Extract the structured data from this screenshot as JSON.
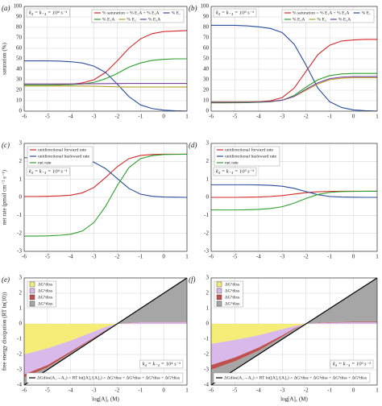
{
  "chart_data": [
    {
      "type": "line",
      "label": "(a)",
      "annotation": "k₄ = k₋₄ = 10⁴ s⁻¹",
      "ylabel": "saturation (%)",
      "legend": "upper right",
      "grid": true,
      "x": [
        -6,
        -5.5,
        -5,
        -4.5,
        -4,
        -3.5,
        -3,
        -2.5,
        -2,
        -1.5,
        -1,
        -0.5,
        0,
        0.5,
        1
      ],
      "xlim": [
        -6,
        1
      ],
      "xticks": [
        -6,
        -5,
        -4,
        -3,
        -2,
        -1,
        0,
        1
      ],
      "ylim": [
        0,
        100
      ],
      "yticks": [
        0,
        10,
        20,
        30,
        40,
        50,
        60,
        70,
        80,
        90,
        100
      ],
      "series": [
        {
          "name": "% saturation = % E₁A + % E₂A",
          "color": "#d62728",
          "values": [
            25,
            25,
            25,
            25.2,
            25.6,
            27,
            30,
            37,
            48,
            60,
            69,
            74,
            76,
            76.5,
            77
          ]
        },
        {
          "name": "% E₁",
          "color": "#2a4d9b",
          "values": [
            48,
            48,
            48,
            47.8,
            47.2,
            46,
            43,
            37,
            26,
            14,
            6,
            2.5,
            1,
            0.3,
            0.1
          ]
        },
        {
          "name": "% E₁A",
          "color": "#2ca02c",
          "values": [
            25,
            25,
            25,
            25.1,
            25.3,
            26,
            27.5,
            31,
            36,
            42,
            46,
            48.5,
            49.5,
            50,
            50
          ]
        },
        {
          "name": "% E₂",
          "color": "#b8a02a",
          "values": [
            24,
            24,
            24,
            24,
            24,
            24,
            23.8,
            23.5,
            23.2,
            23,
            23,
            23,
            23,
            23,
            23
          ]
        },
        {
          "name": "% E₂A",
          "color": "#7b3f9e",
          "values": [
            26,
            26,
            26,
            26,
            26,
            26.1,
            26.2,
            26.3,
            26.4,
            26.5,
            26.5,
            26.5,
            26.5,
            26.5,
            26.5
          ]
        }
      ]
    },
    {
      "type": "line",
      "label": "(b)",
      "annotation": "k₄ = k₋₄ = 10³ s⁻¹",
      "legend": "upper right",
      "grid": true,
      "x": [
        -6,
        -5.5,
        -5,
        -4.5,
        -4,
        -3.5,
        -3,
        -2.5,
        -2,
        -1.5,
        -1,
        -0.5,
        0,
        0.5,
        1
      ],
      "xlim": [
        -6,
        1
      ],
      "xticks": [
        -6,
        -5,
        -4,
        -3,
        -2,
        -1,
        0,
        1
      ],
      "ylim": [
        0,
        100
      ],
      "yticks": [
        0,
        10,
        20,
        30,
        40,
        50,
        60,
        70,
        80,
        90,
        100
      ],
      "series": [
        {
          "name": "% saturation = % E₁A + % E₂A",
          "color": "#d62728",
          "values": [
            8,
            8,
            8.1,
            8.3,
            9,
            10,
            13,
            22,
            38,
            54,
            63,
            67,
            68,
            68.5,
            68.5
          ]
        },
        {
          "name": "% E₁",
          "color": "#2a4d9b",
          "values": [
            82,
            82,
            82,
            81.5,
            80.5,
            79,
            75,
            64,
            44,
            22,
            9,
            3.5,
            1.2,
            0.4,
            0.1
          ]
        },
        {
          "name": "% E₁A",
          "color": "#2ca02c",
          "values": [
            8,
            8,
            8,
            8.1,
            8.5,
            9,
            10.5,
            15,
            23,
            30,
            34,
            35.5,
            36,
            36,
            36
          ]
        },
        {
          "name": "% E₂",
          "color": "#b8a02a",
          "values": [
            9,
            9,
            9,
            9,
            9.2,
            9.5,
            10.5,
            14,
            20,
            26,
            30,
            31.5,
            32,
            32,
            32
          ]
        },
        {
          "name": "% E₂A",
          "color": "#7b3f9e",
          "values": [
            8.5,
            8.5,
            8.5,
            8.6,
            8.8,
            9.3,
            10.5,
            14,
            21,
            27,
            31,
            32.5,
            33,
            33,
            33
          ]
        }
      ]
    },
    {
      "type": "line",
      "label": "(c)",
      "annotation": "k₄ = k₋₄ = 10⁴ s⁻¹",
      "ylabel": "net rate (pmol cm⁻² s⁻¹)",
      "legend": "upper left",
      "grid": true,
      "x": [
        -6,
        -5.5,
        -5,
        -4.5,
        -4,
        -3.5,
        -3,
        -2.5,
        -2,
        -1.5,
        -1,
        -0.5,
        0,
        0.5,
        1
      ],
      "xlim": [
        -6,
        1
      ],
      "xticks": [
        -6,
        -5,
        -4,
        -3,
        -2,
        -1,
        0,
        1
      ],
      "ylim": [
        -3,
        3
      ],
      "yticks": [
        -3,
        -2,
        -1,
        0,
        1,
        2,
        3
      ],
      "series": [
        {
          "name": "unidirectional forward rate",
          "color": "#d62728",
          "values": [
            0.05,
            0.05,
            0.06,
            0.08,
            0.12,
            0.25,
            0.55,
            1.1,
            1.7,
            2.15,
            2.33,
            2.38,
            2.4,
            2.4,
            2.4
          ]
        },
        {
          "name": "unidirectional backward rate",
          "color": "#2a4d9b",
          "values": [
            2.2,
            2.2,
            2.2,
            2.19,
            2.17,
            2.12,
            1.95,
            1.6,
            1.05,
            0.5,
            0.18,
            0.06,
            0.02,
            0.01,
            0
          ]
        },
        {
          "name": "net rate",
          "color": "#2ca02c",
          "values": [
            -2.15,
            -2.15,
            -2.14,
            -2.11,
            -2.05,
            -1.87,
            -1.4,
            -0.5,
            0.65,
            1.65,
            2.15,
            2.32,
            2.38,
            2.39,
            2.4
          ]
        }
      ]
    },
    {
      "type": "line",
      "label": "(d)",
      "annotation": "k₄ = k₋₄ = 10³ s⁻¹",
      "legend": "upper left",
      "grid": true,
      "x": [
        -6,
        -5.5,
        -5,
        -4.5,
        -4,
        -3.5,
        -3,
        -2.5,
        -2,
        -1.5,
        -1,
        -0.5,
        0,
        0.5,
        1
      ],
      "xlim": [
        -6,
        1
      ],
      "xticks": [
        -6,
        -5,
        -4,
        -3,
        -2,
        -1,
        0,
        1
      ],
      "ylim": [
        -3,
        3
      ],
      "yticks": [
        -3,
        -2,
        -1,
        0,
        1,
        2,
        3
      ],
      "series": [
        {
          "name": "unidirectional forward rate",
          "color": "#d62728",
          "values": [
            0,
            0,
            0,
            0.01,
            0.02,
            0.05,
            0.1,
            0.18,
            0.26,
            0.31,
            0.33,
            0.34,
            0.34,
            0.34,
            0.34
          ]
        },
        {
          "name": "unidirectional backward rate",
          "color": "#2a4d9b",
          "values": [
            0.7,
            0.7,
            0.7,
            0.7,
            0.69,
            0.67,
            0.62,
            0.5,
            0.32,
            0.15,
            0.05,
            0.02,
            0.01,
            0,
            0
          ]
        },
        {
          "name": "net rate",
          "color": "#2ca02c",
          "values": [
            -0.7,
            -0.7,
            -0.7,
            -0.69,
            -0.67,
            -0.62,
            -0.52,
            -0.32,
            -0.06,
            0.16,
            0.28,
            0.32,
            0.33,
            0.34,
            0.34
          ]
        }
      ]
    },
    {
      "type": "area",
      "label": "(e)",
      "annotation": "k₄ = k₋₄ = 10⁴ s⁻¹",
      "ylabel": "free energy dissipation (RT ln(10))",
      "xlabel": "log[A]₁ (M)",
      "legend": "upper left",
      "grid": true,
      "x": [
        -6,
        -5,
        -4,
        -3,
        -2.5,
        -2,
        -1.5,
        -1,
        0,
        1
      ],
      "xlim": [
        -6,
        1
      ],
      "xticks": [
        -6,
        -5,
        -4,
        -3,
        -2,
        -1,
        0,
        1
      ],
      "ylim": [
        -4,
        3
      ],
      "yticks": [
        -4,
        -3,
        -2,
        -1,
        0,
        1,
        2,
        3
      ],
      "series": [
        {
          "name": "ΔG¹diss",
          "color": "#f4ee78",
          "values": [
            -2,
            -1.6,
            -1.1,
            -0.5,
            -0.2,
            0,
            0,
            0,
            0,
            0
          ]
        },
        {
          "name": "ΔG²diss",
          "color": "#d9b8ea",
          "values": [
            -1.3,
            -1.1,
            -0.7,
            -0.4,
            -0.2,
            0,
            0.05,
            0.1,
            0.1,
            0.1
          ]
        },
        {
          "name": "ΔG³diss",
          "color": "#c0504d",
          "values": [
            -0.2,
            -0.15,
            -0.1,
            -0.05,
            -0.02,
            0,
            0.02,
            0.02,
            0.02,
            0.02
          ]
        },
        {
          "name": "ΔG⁴diss",
          "color": "#a6a6a6",
          "values": [
            -0.5,
            -0.15,
            -0.1,
            -0.05,
            -0.08,
            0,
            0.43,
            0.88,
            1.88,
            2.88
          ]
        }
      ],
      "total": {
        "name": "ΔGdiss(A₁→A₂) = RT ln([A]₁/[A]₂) = ΔG¹diss + ΔG²diss + ΔG³diss + ΔG⁴diss",
        "color": "#000000",
        "values": [
          -4,
          -3,
          -2,
          -1,
          -0.5,
          0,
          0.5,
          1,
          2,
          3
        ]
      }
    },
    {
      "type": "area",
      "label": "(f)",
      "annotation": "k₄ = k₋₄ = 10³ s⁻¹",
      "xlabel": "log[A]₁ (M)",
      "legend": "upper left",
      "grid": true,
      "x": [
        -6,
        -5,
        -4,
        -3,
        -2.5,
        -2,
        -1.5,
        -1,
        0,
        1
      ],
      "xlim": [
        -6,
        1
      ],
      "xticks": [
        -6,
        -5,
        -4,
        -3,
        -2,
        -1,
        0,
        1
      ],
      "ylim": [
        -4,
        3
      ],
      "yticks": [
        -4,
        -3,
        -2,
        -1,
        0,
        1,
        2,
        3
      ],
      "series": [
        {
          "name": "ΔG¹diss",
          "color": "#f4ee78",
          "values": [
            -1.3,
            -1.05,
            -0.75,
            -0.35,
            -0.15,
            0,
            0,
            0,
            0,
            0
          ]
        },
        {
          "name": "ΔG²diss",
          "color": "#d9b8ea",
          "values": [
            -1.4,
            -1.15,
            -0.8,
            -0.4,
            -0.15,
            0,
            0.05,
            0.08,
            0.1,
            0.1
          ]
        },
        {
          "name": "ΔG³diss",
          "color": "#c0504d",
          "values": [
            -0.3,
            -0.25,
            -0.2,
            -0.1,
            -0.05,
            0,
            0.02,
            0.03,
            0.03,
            0.03
          ]
        },
        {
          "name": "ΔG⁴diss",
          "color": "#a6a6a6",
          "values": [
            -1,
            -0.55,
            -0.25,
            -0.15,
            -0.15,
            0,
            0.43,
            0.89,
            1.87,
            2.87
          ]
        }
      ],
      "total": {
        "name": "ΔGdiss(A₁→A₂) = RT ln([A]₁/[A]₂) = ΔG¹diss + ΔG²diss + ΔG³diss + ΔG⁴diss",
        "color": "#000000",
        "values": [
          -4,
          -3,
          -2,
          -1,
          -0.5,
          0,
          0.5,
          1,
          2,
          3
        ]
      }
    }
  ]
}
